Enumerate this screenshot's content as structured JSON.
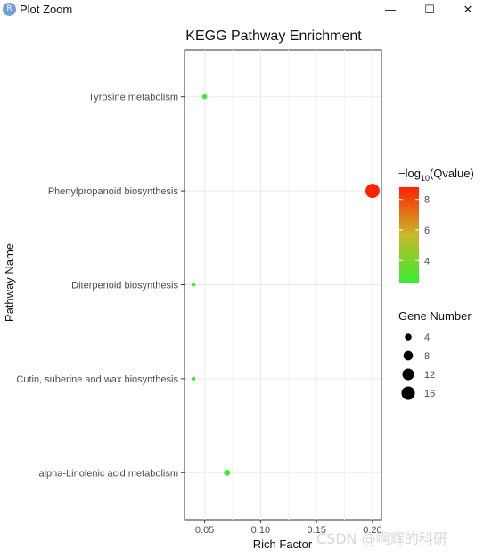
{
  "window": {
    "title": "Plot Zoom",
    "app_icon_letter": "R",
    "minimize_glyph": "—",
    "maximize_glyph": "☐",
    "close_glyph": "✕"
  },
  "legend": {
    "color_title_prefix": "−log",
    "color_title_sub": "10",
    "color_title_suffix": "(Qvalue)",
    "color_ticks": [
      {
        "value": 8,
        "label": "8"
      },
      {
        "value": 6,
        "label": "6"
      },
      {
        "value": 4,
        "label": "4"
      }
    ],
    "color_range": [
      2.5,
      8.8
    ],
    "color_low": "#33ee33",
    "color_high": "#ff2200",
    "size_title": "Gene Number",
    "size_entries": [
      {
        "value": 4,
        "label": "4"
      },
      {
        "value": 8,
        "label": "8"
      },
      {
        "value": 12,
        "label": "12"
      },
      {
        "value": 16,
        "label": "16"
      }
    ]
  },
  "watermark": "CSDN @啊辉的科研",
  "chart_data": {
    "type": "scatter",
    "title": "KEGG Pathway Enrichment",
    "xlabel": "Rich Factor",
    "ylabel": "Pathway Name",
    "xlim": [
      0.032,
      0.208
    ],
    "x_ticks": [
      {
        "value": 0.05,
        "label": "0.05"
      },
      {
        "value": 0.1,
        "label": "0.10"
      },
      {
        "value": 0.15,
        "label": "0.15"
      },
      {
        "value": 0.2,
        "label": "0.20"
      }
    ],
    "grid": true,
    "legend_position": "right",
    "categories": [
      "Tyrosine metabolism",
      "Phenylpropanoid biosynthesis",
      "Diterpenoid biosynthesis",
      "Cutin, suberine and wax biosynthesis",
      "alpha-Linolenic acid metabolism"
    ],
    "points": [
      {
        "pathway": "Tyrosine metabolism",
        "rich_factor": 0.05,
        "gene_number": 2,
        "neg_log10_q": 2.6
      },
      {
        "pathway": "Phenylpropanoid biosynthesis",
        "rich_factor": 0.2,
        "gene_number": 16,
        "neg_log10_q": 8.8
      },
      {
        "pathway": "Diterpenoid biosynthesis",
        "rich_factor": 0.04,
        "gene_number": 1,
        "neg_log10_q": 2.5
      },
      {
        "pathway": "Cutin, suberine and wax biosynthesis",
        "rich_factor": 0.04,
        "gene_number": 1,
        "neg_log10_q": 2.5
      },
      {
        "pathway": "alpha-Linolenic acid metabolism",
        "rich_factor": 0.07,
        "gene_number": 3,
        "neg_log10_q": 2.7
      }
    ]
  }
}
